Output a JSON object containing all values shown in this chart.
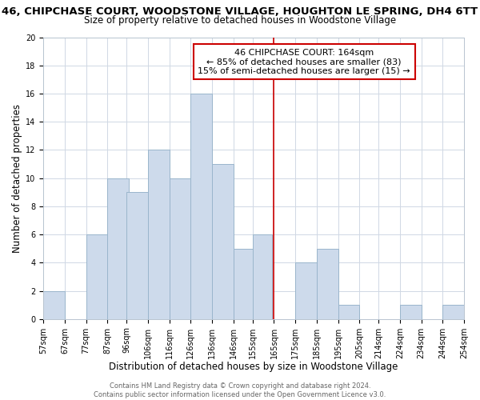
{
  "title_line1": "46, CHIPCHASE COURT, WOODSTONE VILLAGE, HOUGHTON LE SPRING, DH4 6TT",
  "title_line2": "Size of property relative to detached houses in Woodstone Village",
  "xlabel": "Distribution of detached houses by size in Woodstone Village",
  "ylabel": "Number of detached properties",
  "footer_line1": "Contains HM Land Registry data © Crown copyright and database right 2024.",
  "footer_line2": "Contains public sector information licensed under the Open Government Licence v3.0.",
  "annotation_title": "46 CHIPCHASE COURT: 164sqm",
  "annotation_line1": "← 85% of detached houses are smaller (83)",
  "annotation_line2": "15% of semi-detached houses are larger (15) →",
  "bar_left_edges": [
    57,
    67,
    77,
    87,
    96,
    106,
    116,
    126,
    136,
    146,
    155,
    165,
    175,
    185,
    195,
    205,
    214,
    224,
    234,
    244
  ],
  "bar_widths": [
    10,
    10,
    10,
    10,
    10,
    10,
    10,
    10,
    10,
    10,
    9,
    10,
    10,
    10,
    10,
    9,
    10,
    10,
    10,
    10
  ],
  "bar_heights": [
    2,
    0,
    6,
    10,
    9,
    12,
    10,
    16,
    11,
    5,
    6,
    0,
    4,
    5,
    1,
    0,
    0,
    1,
    0,
    1
  ],
  "bar_color": "#cddaeb",
  "bar_edgecolor": "#9ab5cc",
  "reference_line_x": 165,
  "reference_line_color": "#cc0000",
  "ylim": [
    0,
    20
  ],
  "yticks": [
    0,
    2,
    4,
    6,
    8,
    10,
    12,
    14,
    16,
    18,
    20
  ],
  "xtick_labels": [
    "57sqm",
    "67sqm",
    "77sqm",
    "87sqm",
    "96sqm",
    "106sqm",
    "116sqm",
    "126sqm",
    "136sqm",
    "146sqm",
    "155sqm",
    "165sqm",
    "175sqm",
    "185sqm",
    "195sqm",
    "205sqm",
    "214sqm",
    "224sqm",
    "234sqm",
    "244sqm",
    "254sqm"
  ],
  "background_color": "#ffffff",
  "grid_color": "#d0d8e4",
  "annotation_box_color": "#ffffff",
  "annotation_box_edgecolor": "#cc0000",
  "title_fontsize": 9.5,
  "subtitle_fontsize": 8.5,
  "axis_label_fontsize": 8.5,
  "tick_fontsize": 7,
  "annotation_fontsize": 8,
  "footer_fontsize": 6
}
